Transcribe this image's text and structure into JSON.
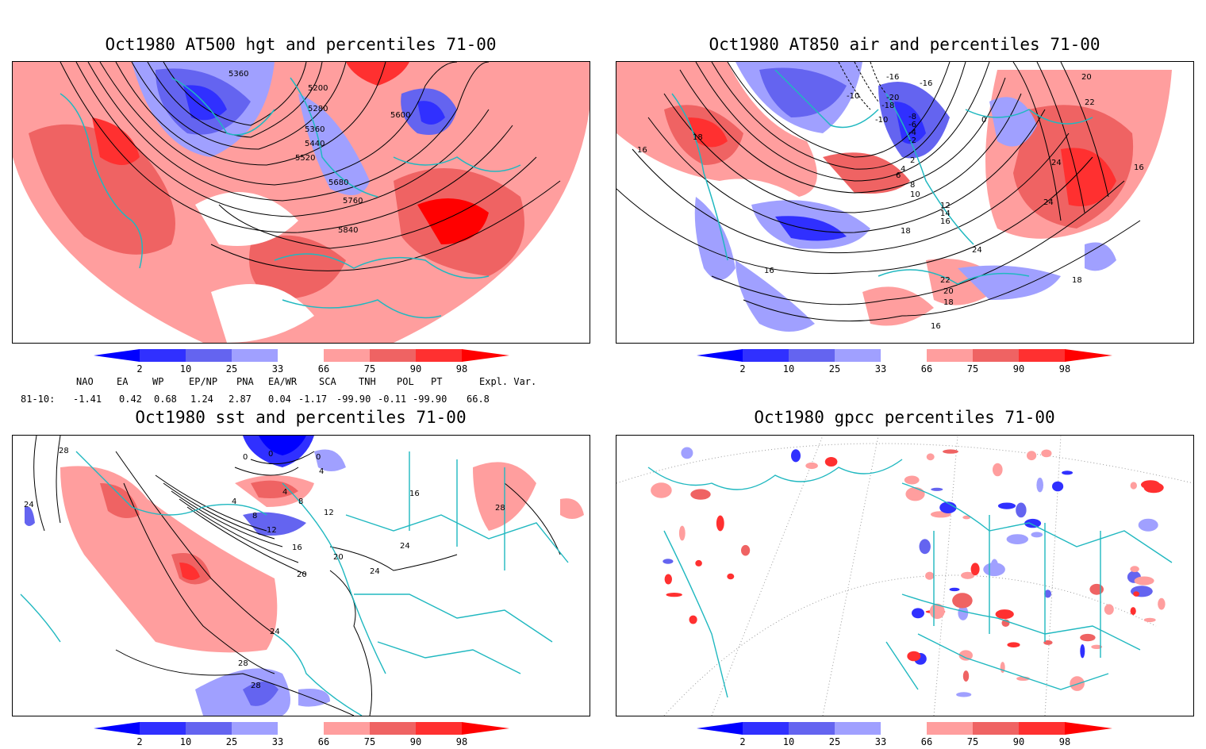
{
  "colors": {
    "red1": "#ff9e9e",
    "red2": "#ef6363",
    "red3": "#ff3030",
    "red4": "#ff0000",
    "blue1": "#a0a0ff",
    "blue2": "#6464f0",
    "blue3": "#3030ff",
    "blue4": "#0000ff",
    "coast": "#20b8c0",
    "contour": "#000000"
  },
  "panels": [
    {
      "title": "Oct1980 AT500 hgt and percentiles 71-00",
      "contour_labels": [
        "5360",
        "5200",
        "5280",
        "5360",
        "5440",
        "5520",
        "5600",
        "5680",
        "5760",
        "5840"
      ]
    },
    {
      "title": "Oct1980 AT850 air and percentiles 71-00",
      "contour_labels": [
        "-16",
        "-16",
        "-10",
        "-18",
        "-20",
        "-10",
        "-8",
        "-6",
        "-4",
        "-2",
        "0",
        "2",
        "4",
        "6",
        "8",
        "10",
        "12",
        "14",
        "16",
        "16",
        "18",
        "18",
        "18",
        "18",
        "20",
        "20",
        "22",
        "22",
        "24",
        "24",
        "24",
        "16",
        "16",
        "16"
      ]
    },
    {
      "title": "Oct1980 sst and percentiles 71-00",
      "contour_labels": [
        "28",
        "24",
        "0",
        "0",
        "0",
        "4",
        "4",
        "4",
        "8",
        "8",
        "12",
        "12",
        "16",
        "16",
        "20",
        "20",
        "24",
        "24",
        "24",
        "28",
        "28",
        "28"
      ]
    },
    {
      "title": "Oct1980 gpcc percentiles 71-00",
      "contour_labels": []
    }
  ],
  "colorbar": {
    "ticks": [
      "2",
      "10",
      "25",
      "33",
      "66",
      "75",
      "90",
      "98"
    ]
  },
  "indices": {
    "headers": [
      "NAO",
      "EA",
      "WP",
      "EP/NP",
      "PNA",
      "EA/WR",
      "SCA",
      "TNH",
      "POL",
      "PT",
      "Expl. Var."
    ],
    "row_label": "81-10:",
    "values": [
      "-1.41",
      "0.42",
      "0.68",
      "1.24",
      "2.87",
      "0.04",
      "-1.17",
      "-99.90",
      "-0.11",
      "-99.90",
      "66.8"
    ]
  }
}
